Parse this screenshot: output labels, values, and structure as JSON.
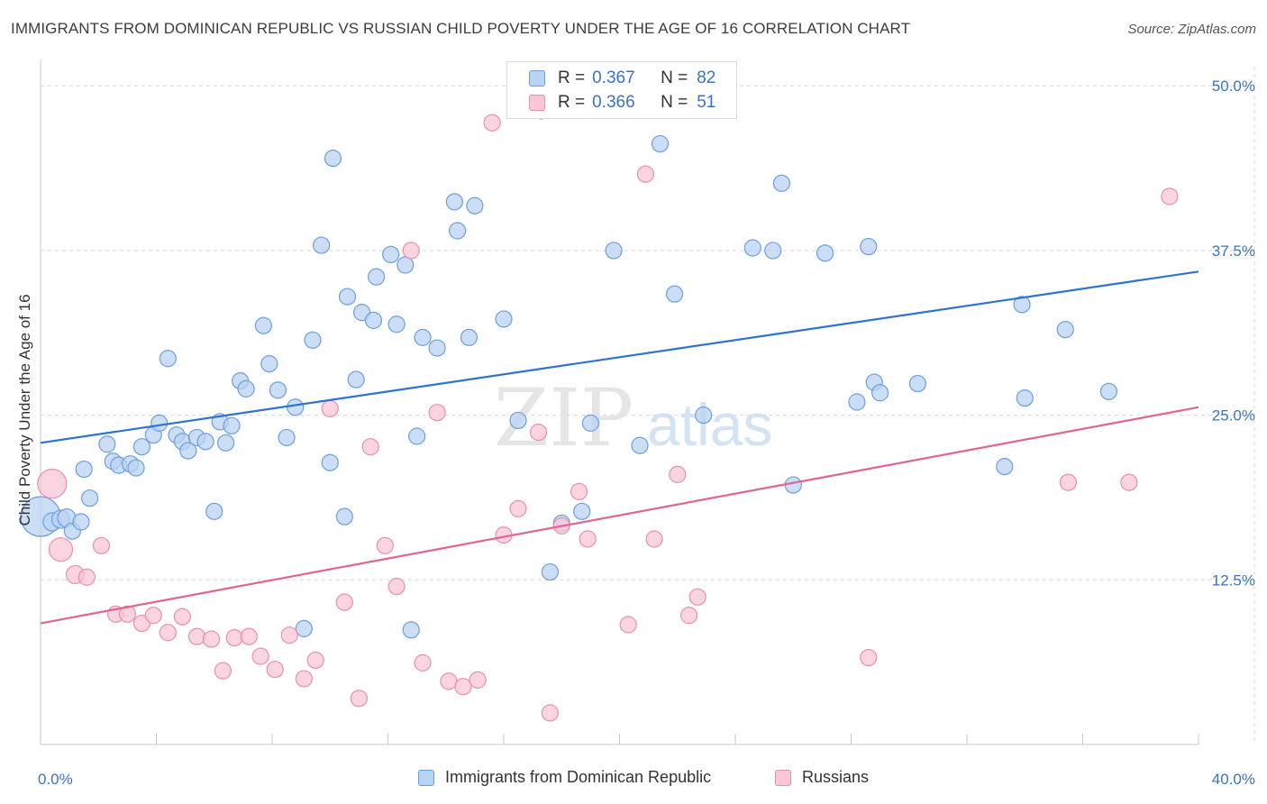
{
  "title": "IMMIGRANTS FROM DOMINICAN REPUBLIC VS RUSSIAN CHILD POVERTY UNDER THE AGE OF 16 CORRELATION CHART",
  "source": "Source: ZipAtlas.com",
  "watermark": {
    "zip": "ZIP",
    "atlas": "atlas"
  },
  "legend_top": {
    "series1": {
      "r_label": "R =",
      "r_value": "0.367",
      "n_label": "N =",
      "n_value": "82"
    },
    "series2": {
      "r_label": "R =",
      "r_value": "0.366",
      "n_label": "N =",
      "n_value": "51"
    }
  },
  "legend_bottom": {
    "series1": "Immigrants from Dominican Republic",
    "series2": "Russians"
  },
  "colors": {
    "blue_fill": "#b9d3f2",
    "blue_stroke": "#6b9ee0",
    "blue_line": "#2e73d0",
    "pink_fill": "#f8c6d6",
    "pink_stroke": "#e98fae",
    "pink_line": "#e06593",
    "tick_text": "#3a72c8",
    "grid": "#d9d9d9"
  },
  "chart_data": {
    "type": "scatter",
    "ylabel": "Child Poverty Under the Age of 16",
    "xlim": [
      0,
      40
    ],
    "ylim": [
      0,
      52
    ],
    "x_tick_labels": [
      {
        "value": 0,
        "label": "0.0%"
      },
      {
        "value": 40,
        "label": "40.0%"
      }
    ],
    "x_minor_ticks": [
      0,
      4,
      8,
      12,
      16,
      20,
      24,
      28,
      32,
      36,
      40
    ],
    "y_ticks": [
      {
        "value": 12.5,
        "label": "12.5%"
      },
      {
        "value": 25,
        "label": "25.0%"
      },
      {
        "value": 37.5,
        "label": "37.5%"
      },
      {
        "value": 50,
        "label": "50.0%"
      }
    ],
    "series": [
      {
        "name": "Immigrants from Dominican Republic",
        "trend": {
          "x0": 0,
          "y0": 22.9,
          "x1": 40,
          "y1": 35.9
        },
        "points": [
          [
            0.0,
            17.3,
            22
          ],
          [
            0.4,
            16.9,
            10
          ],
          [
            0.7,
            17.1,
            10
          ],
          [
            0.9,
            17.2,
            10
          ],
          [
            1.1,
            16.2,
            9
          ],
          [
            1.4,
            16.9,
            9
          ],
          [
            1.5,
            20.9,
            9
          ],
          [
            1.7,
            18.7,
            9
          ],
          [
            2.3,
            22.8,
            9
          ],
          [
            2.5,
            21.5,
            9
          ],
          [
            2.7,
            21.2,
            9
          ],
          [
            3.1,
            21.3,
            9
          ],
          [
            3.3,
            21.0,
            9
          ],
          [
            3.5,
            22.6,
            9
          ],
          [
            3.9,
            23.5,
            9
          ],
          [
            4.1,
            24.4,
            9
          ],
          [
            4.4,
            29.3,
            9
          ],
          [
            4.7,
            23.5,
            9
          ],
          [
            4.9,
            23.0,
            9
          ],
          [
            5.1,
            22.3,
            9
          ],
          [
            5.4,
            23.3,
            9
          ],
          [
            5.7,
            23.0,
            9
          ],
          [
            6.0,
            17.7,
            9
          ],
          [
            6.2,
            24.5,
            9
          ],
          [
            6.4,
            22.9,
            9
          ],
          [
            6.6,
            24.2,
            9
          ],
          [
            6.9,
            27.6,
            9
          ],
          [
            7.1,
            27.0,
            9
          ],
          [
            7.7,
            31.8,
            9
          ],
          [
            7.9,
            28.9,
            9
          ],
          [
            8.2,
            26.9,
            9
          ],
          [
            8.5,
            23.3,
            9
          ],
          [
            8.8,
            25.6,
            9
          ],
          [
            9.1,
            8.8,
            9
          ],
          [
            9.4,
            30.7,
            9
          ],
          [
            9.7,
            37.9,
            9
          ],
          [
            10.0,
            21.4,
            9
          ],
          [
            10.1,
            44.5,
            9
          ],
          [
            10.5,
            17.3,
            9
          ],
          [
            10.6,
            34.0,
            9
          ],
          [
            10.9,
            27.7,
            9
          ],
          [
            11.1,
            32.8,
            9
          ],
          [
            11.5,
            32.2,
            9
          ],
          [
            11.6,
            35.5,
            9
          ],
          [
            12.1,
            37.2,
            9
          ],
          [
            12.3,
            31.9,
            9
          ],
          [
            12.6,
            36.4,
            9
          ],
          [
            12.8,
            8.7,
            9
          ],
          [
            13.0,
            23.4,
            9
          ],
          [
            13.2,
            30.9,
            9
          ],
          [
            13.7,
            30.1,
            9
          ],
          [
            14.3,
            41.2,
            9
          ],
          [
            14.4,
            39.0,
            9
          ],
          [
            14.8,
            30.9,
            9
          ],
          [
            15.0,
            40.9,
            9
          ],
          [
            16.0,
            32.3,
            9
          ],
          [
            16.5,
            24.6,
            9
          ],
          [
            17.3,
            48.1,
            9
          ],
          [
            17.6,
            13.1,
            9
          ],
          [
            18.0,
            16.8,
            9
          ],
          [
            18.7,
            17.7,
            9
          ],
          [
            19.0,
            24.4,
            9
          ],
          [
            19.8,
            37.5,
            9
          ],
          [
            20.7,
            22.7,
            9
          ],
          [
            21.4,
            45.6,
            9
          ],
          [
            21.9,
            34.2,
            9
          ],
          [
            22.9,
            25.0,
            9
          ],
          [
            24.6,
            37.7,
            9
          ],
          [
            25.3,
            37.5,
            9
          ],
          [
            25.6,
            42.6,
            9
          ],
          [
            26.0,
            19.7,
            9
          ],
          [
            27.1,
            37.3,
            9
          ],
          [
            28.2,
            26.0,
            9
          ],
          [
            28.6,
            37.8,
            9
          ],
          [
            28.8,
            27.5,
            9
          ],
          [
            29.0,
            26.7,
            9
          ],
          [
            30.3,
            27.4,
            9
          ],
          [
            33.3,
            21.1,
            9
          ],
          [
            33.9,
            33.4,
            9
          ],
          [
            34.0,
            26.3,
            9
          ],
          [
            35.4,
            31.5,
            9
          ],
          [
            36.9,
            26.8,
            9
          ]
        ]
      },
      {
        "name": "Russians",
        "trend": {
          "x0": 0,
          "y0": 9.2,
          "x1": 40,
          "y1": 25.6
        },
        "points": [
          [
            0.4,
            19.8,
            16
          ],
          [
            0.7,
            14.8,
            13
          ],
          [
            1.2,
            12.9,
            10
          ],
          [
            1.6,
            12.7,
            9
          ],
          [
            2.1,
            15.1,
            9
          ],
          [
            2.6,
            9.9,
            9
          ],
          [
            3.0,
            9.9,
            9
          ],
          [
            3.5,
            9.2,
            9
          ],
          [
            3.9,
            9.8,
            9
          ],
          [
            4.4,
            8.5,
            9
          ],
          [
            4.9,
            9.7,
            9
          ],
          [
            5.4,
            8.2,
            9
          ],
          [
            5.9,
            8.0,
            9
          ],
          [
            6.3,
            5.6,
            9
          ],
          [
            6.7,
            8.1,
            9
          ],
          [
            7.2,
            8.2,
            9
          ],
          [
            7.6,
            6.7,
            9
          ],
          [
            8.1,
            5.7,
            9
          ],
          [
            8.6,
            8.3,
            9
          ],
          [
            9.1,
            5.0,
            9
          ],
          [
            9.5,
            6.4,
            9
          ],
          [
            10.0,
            25.5,
            9
          ],
          [
            10.5,
            10.8,
            9
          ],
          [
            11.0,
            3.5,
            9
          ],
          [
            11.4,
            22.6,
            9
          ],
          [
            11.9,
            15.1,
            9
          ],
          [
            12.3,
            12.0,
            9
          ],
          [
            12.8,
            37.5,
            9
          ],
          [
            13.2,
            6.2,
            9
          ],
          [
            13.7,
            25.2,
            9
          ],
          [
            14.1,
            4.8,
            9
          ],
          [
            14.6,
            4.4,
            9
          ],
          [
            15.1,
            4.9,
            9
          ],
          [
            15.6,
            47.2,
            9
          ],
          [
            16.0,
            15.9,
            9
          ],
          [
            16.5,
            17.9,
            9
          ],
          [
            17.2,
            23.7,
            9
          ],
          [
            17.6,
            2.4,
            9
          ],
          [
            18.0,
            16.6,
            9
          ],
          [
            18.6,
            19.2,
            9
          ],
          [
            18.9,
            15.6,
            9
          ],
          [
            20.3,
            9.1,
            9
          ],
          [
            20.9,
            43.3,
            9
          ],
          [
            21.2,
            15.6,
            9
          ],
          [
            22.0,
            20.5,
            9
          ],
          [
            22.4,
            9.8,
            9
          ],
          [
            22.7,
            11.2,
            9
          ],
          [
            28.6,
            6.6,
            9
          ],
          [
            35.5,
            19.9,
            9
          ],
          [
            37.6,
            19.9,
            9
          ],
          [
            39.0,
            41.6,
            9
          ]
        ]
      }
    ]
  }
}
